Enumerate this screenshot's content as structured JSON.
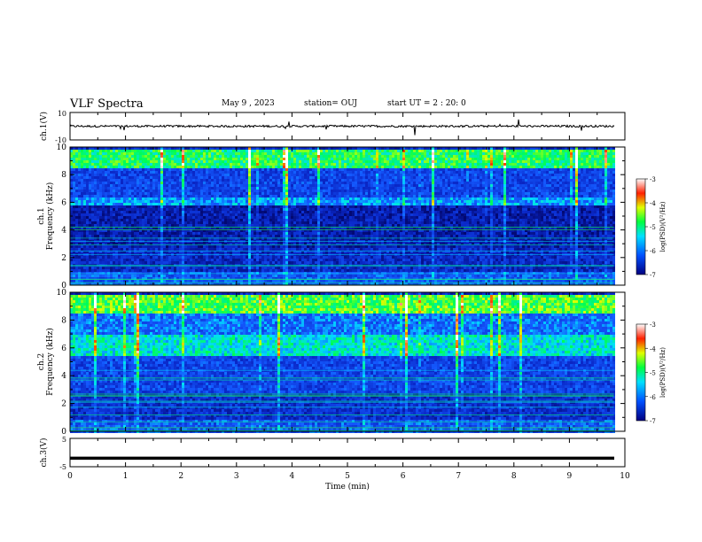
{
  "header": {
    "title": "VLF Spectra",
    "date": "May 9 , 2023",
    "station": "station= OUJ",
    "start": "start UT = 2 : 20: 0"
  },
  "colors": {
    "spectrogram_low": "#0a1a7a",
    "spectrogram_mid": "#1a4fd6",
    "spectrogram_high": "#00ff66",
    "trace": "#000000"
  },
  "chart_data": [
    {
      "type": "line",
      "ylabel": "ch.1(V)",
      "ylim": [
        -10,
        10
      ],
      "yticks": [
        "10",
        "-10"
      ],
      "xlim": [
        0,
        10
      ],
      "series": [
        {
          "description_free": true,
          "baseline": 0,
          "noise_amplitude": 1.5
        }
      ]
    },
    {
      "type": "heatmap",
      "ylabel_lines": [
        "ch.1",
        "Frequency (kHz)"
      ],
      "ylim": [
        0,
        10
      ],
      "yticks": [
        "0",
        "2",
        "4",
        "6",
        "8",
        "10"
      ],
      "xlim": [
        0,
        10
      ],
      "data_end_x": 9.8,
      "bands": [
        {
          "from_kHz": 0,
          "to_kHz": 1,
          "level": 0.35
        },
        {
          "from_kHz": 1,
          "to_kHz": 2.8,
          "level": 0.2
        },
        {
          "from_kHz": 2.8,
          "to_kHz": 5.8,
          "level": 0.15
        },
        {
          "from_kHz": 5.8,
          "to_kHz": 6.5,
          "level": 0.45
        },
        {
          "from_kHz": 6.5,
          "to_kHz": 8.5,
          "level": 0.3
        },
        {
          "from_kHz": 8.5,
          "to_kHz": 10,
          "level": 0.65
        }
      ],
      "colorbar": {
        "label": "log(PSD)(V²/Hz)",
        "ticks": [
          "-3",
          "-4",
          "-5",
          "-6",
          "-7"
        ],
        "range": [
          -7,
          -3
        ]
      }
    },
    {
      "type": "heatmap",
      "ylabel_lines": [
        "ch.2",
        "Frequency (kHz)"
      ],
      "ylim": [
        0,
        10
      ],
      "yticks": [
        "0",
        "2",
        "4",
        "6",
        "8",
        "10"
      ],
      "xlim": [
        0,
        10
      ],
      "data_end_x": 9.8,
      "bands": [
        {
          "from_kHz": 0,
          "to_kHz": 1,
          "level": 0.35
        },
        {
          "from_kHz": 1,
          "to_kHz": 2.8,
          "level": 0.22
        },
        {
          "from_kHz": 2.8,
          "to_kHz": 5.5,
          "level": 0.3
        },
        {
          "from_kHz": 5.5,
          "to_kHz": 7,
          "level": 0.55
        },
        {
          "from_kHz": 7,
          "to_kHz": 8.5,
          "level": 0.4
        },
        {
          "from_kHz": 8.5,
          "to_kHz": 10,
          "level": 0.7
        }
      ],
      "colorbar": {
        "label": "log(PSD)(V²/Hz)",
        "ticks": [
          "-3",
          "-4",
          "-5",
          "-6",
          "-7"
        ],
        "range": [
          -7,
          -3
        ]
      }
    },
    {
      "type": "line",
      "ylabel": "ch.3(V)",
      "ylim": [
        -5,
        5
      ],
      "yticks": [
        "5",
        "-5"
      ],
      "xlim": [
        0,
        10
      ],
      "xlabel": "Time (min)",
      "xticks": [
        "0",
        "1",
        "2",
        "3",
        "4",
        "5",
        "6",
        "7",
        "8",
        "9",
        "10"
      ],
      "series": [
        {
          "baseline": -2
        }
      ]
    }
  ]
}
